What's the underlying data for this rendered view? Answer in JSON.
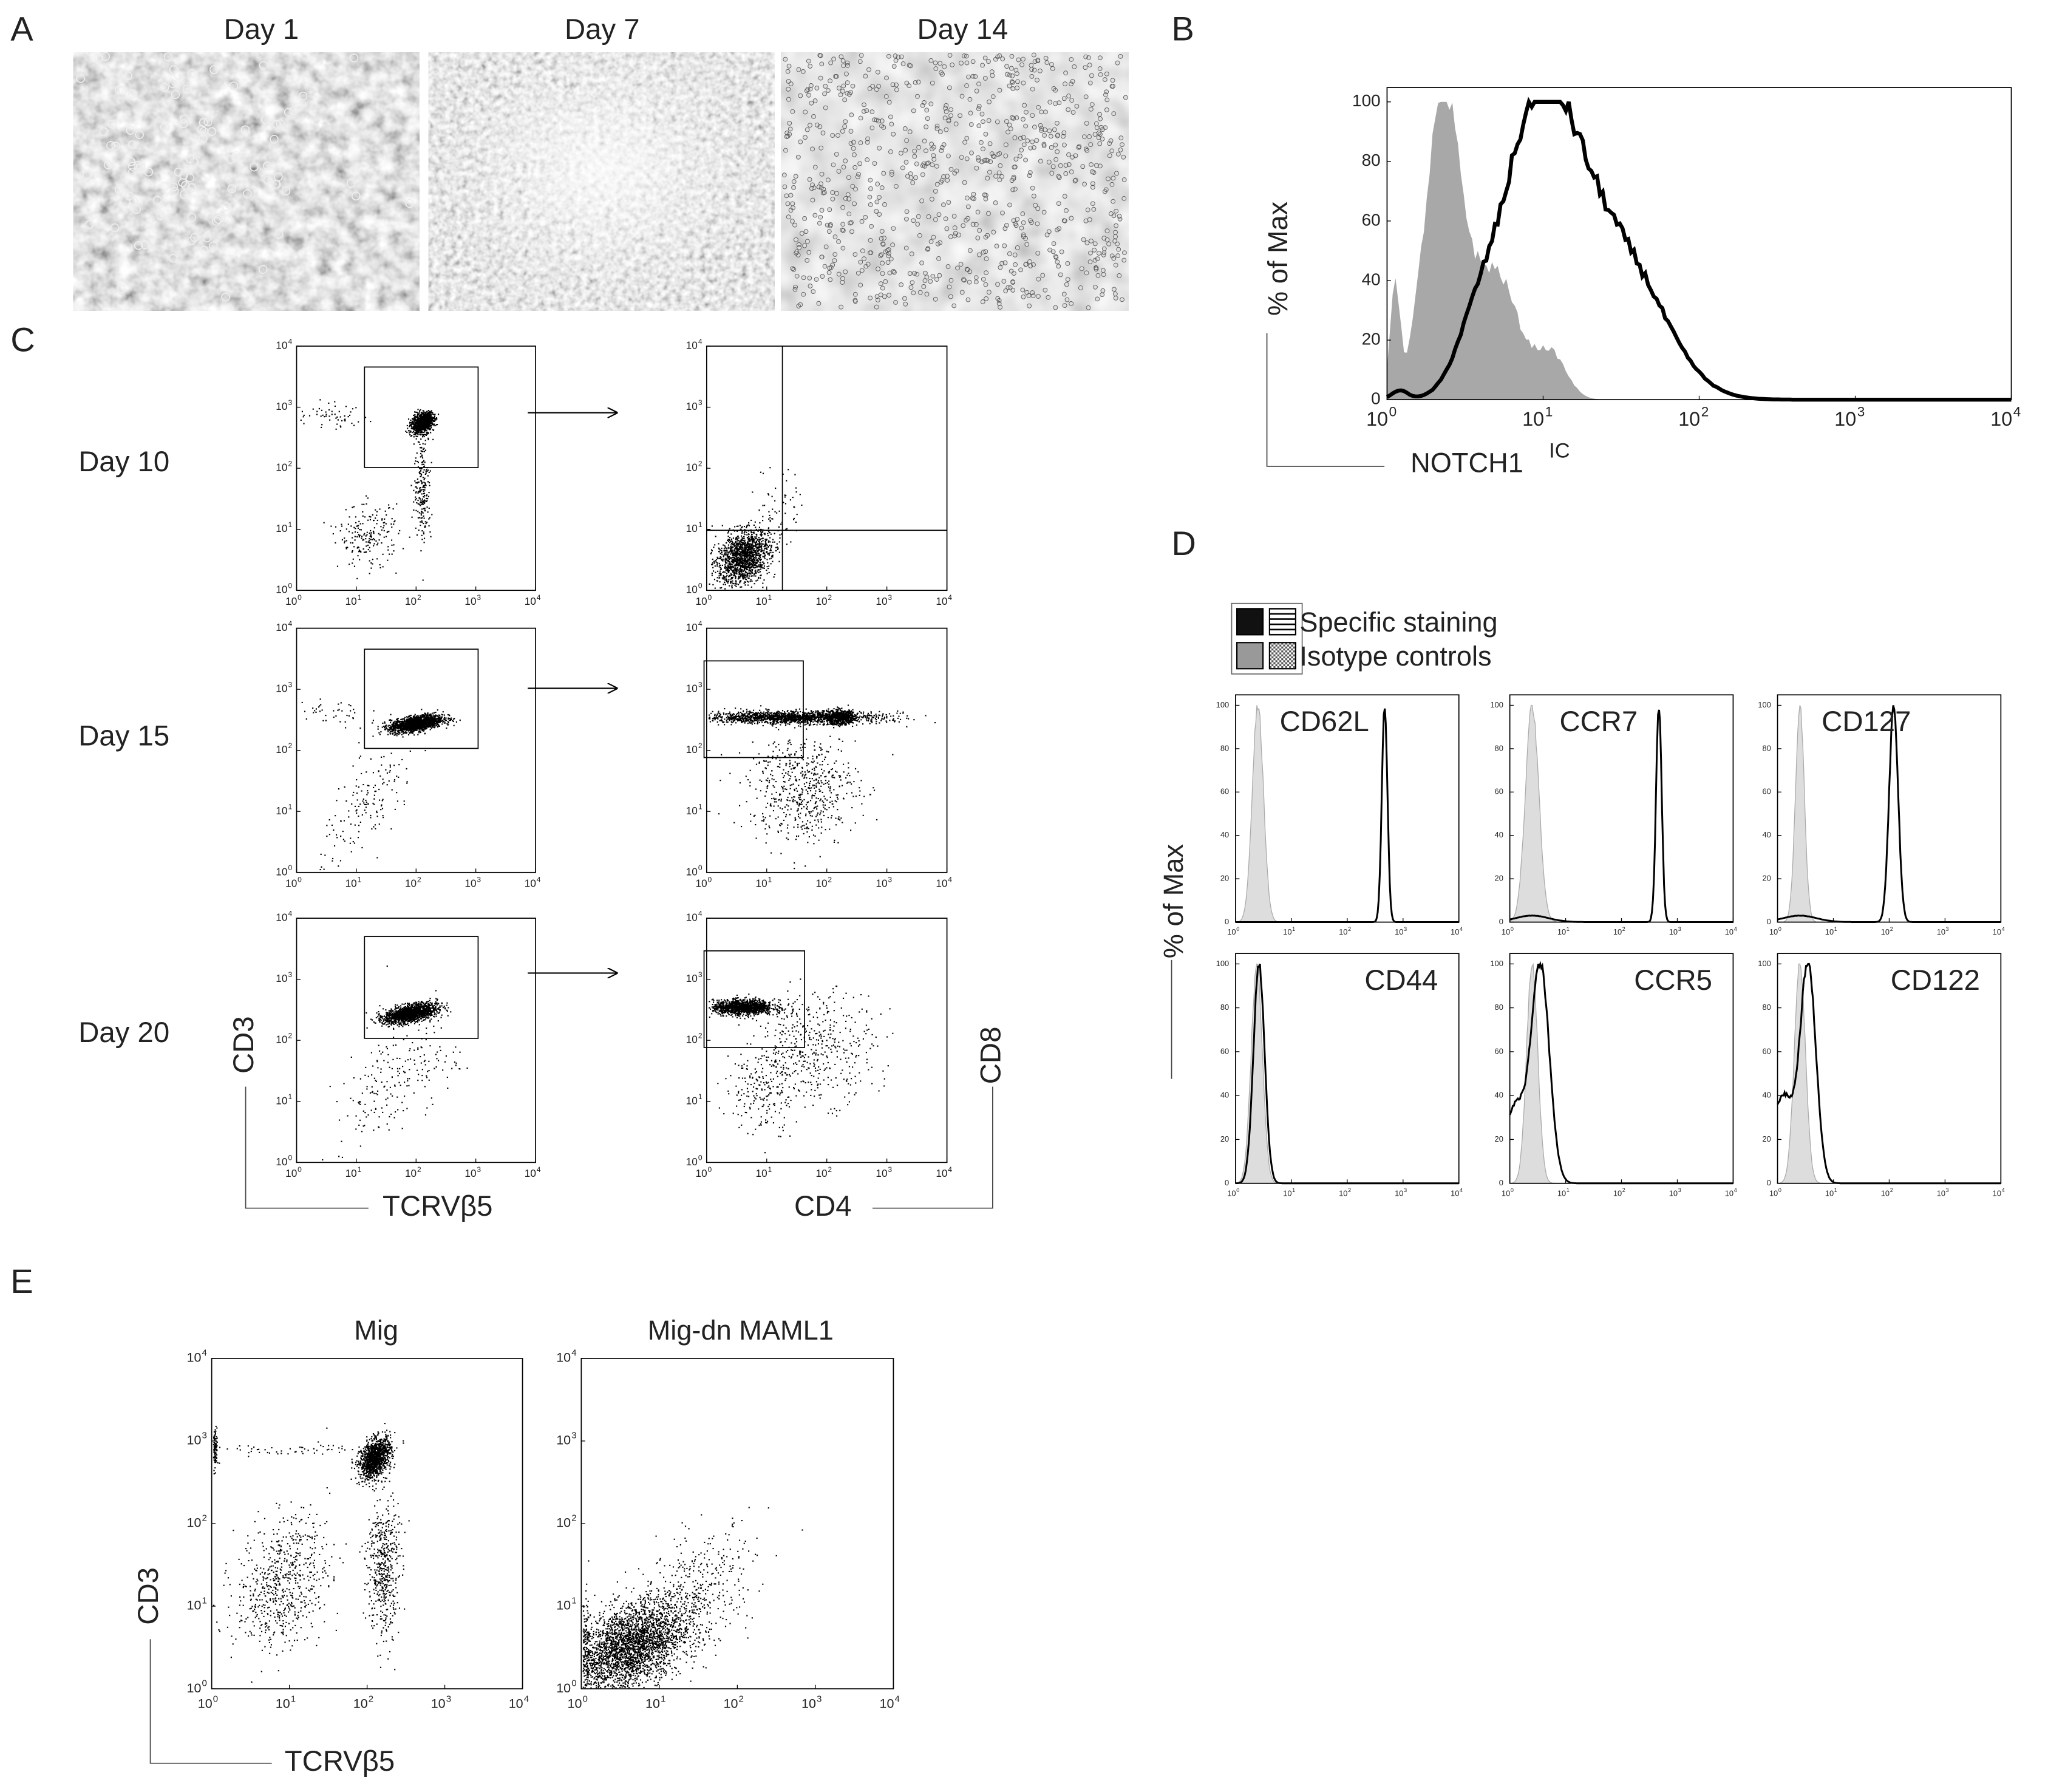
{
  "log_tick": {
    "base": "10",
    "exponents": [
      "0",
      "1",
      "2",
      "3",
      "4"
    ]
  },
  "panel_a": {
    "letter": "A",
    "image_titles": [
      "Day 1",
      "Day 7",
      "Day 14"
    ]
  },
  "panel_b": {
    "letter": "B",
    "y_label": "% of Max",
    "x_label": "NOTCH1",
    "x_label_superscript": "IC",
    "y_ticks": [
      0,
      20,
      40,
      60,
      80,
      100
    ]
  },
  "panel_c": {
    "letter": "C",
    "days": [
      "Day 10",
      "Day 15",
      "Day 20"
    ],
    "left_x_label": "TCRVβ5",
    "left_y_label": "CD3",
    "right_x_label": "CD4",
    "right_y_label": "CD8"
  },
  "panel_d": {
    "letter": "D",
    "legend": [
      "Specific staining",
      "Isotype controls"
    ],
    "y_label": "% of Max",
    "markers": [
      "CD62L",
      "CCR7",
      "CD127",
      "CD44",
      "CCR5",
      "CD122"
    ],
    "y_ticks": [
      0,
      20,
      40,
      60,
      80,
      100
    ]
  },
  "panel_e": {
    "letter": "E",
    "titles": [
      "Mig",
      "Mig-dn MAML1"
    ],
    "y_label": "CD3",
    "x_label": "TCRVβ5"
  }
}
